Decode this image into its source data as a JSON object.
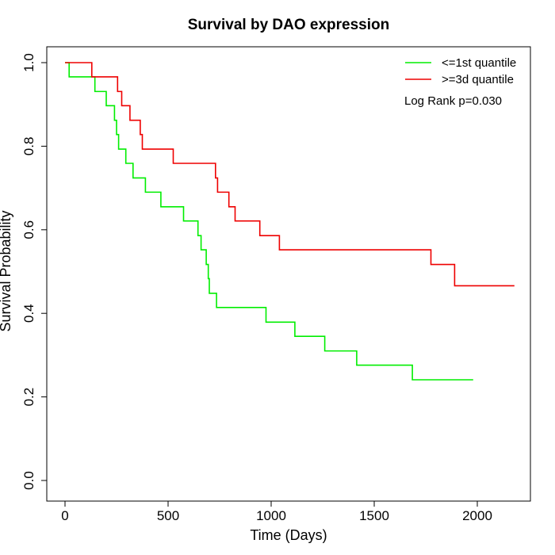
{
  "chart_data": {
    "type": "line",
    "step": true,
    "title": "Survival by DAO expression",
    "xlabel": "Time (Days)",
    "ylabel": "Survival Probability",
    "xlim": [
      0,
      2180
    ],
    "ylim": [
      0,
      1
    ],
    "x_ticks": [
      0,
      500,
      1000,
      1500,
      2000
    ],
    "x_tick_labels": [
      "0",
      "500",
      "1000",
      "1500",
      "2000"
    ],
    "y_ticks": [
      0,
      0.2,
      0.4,
      0.6,
      0.8,
      1
    ],
    "y_tick_labels": [
      "0.0",
      "0.2",
      "0.4",
      "0.6",
      "0.8",
      "1.0"
    ],
    "legend_position": "top-right",
    "annotation": "Log Rank p=0.030",
    "grid": false,
    "series": [
      {
        "name": "<=1st quantile",
        "color": "#00ee00",
        "points": [
          [
            0,
            1.0
          ],
          [
            20,
            0.966
          ],
          [
            145,
            0.931
          ],
          [
            200,
            0.897
          ],
          [
            240,
            0.862
          ],
          [
            250,
            0.828
          ],
          [
            260,
            0.793
          ],
          [
            295,
            0.759
          ],
          [
            330,
            0.724
          ],
          [
            390,
            0.69
          ],
          [
            465,
            0.655
          ],
          [
            575,
            0.621
          ],
          [
            645,
            0.586
          ],
          [
            660,
            0.552
          ],
          [
            685,
            0.517
          ],
          [
            695,
            0.483
          ],
          [
            700,
            0.448
          ],
          [
            735,
            0.414
          ],
          [
            975,
            0.379
          ],
          [
            1115,
            0.345
          ],
          [
            1260,
            0.31
          ],
          [
            1415,
            0.276
          ],
          [
            1685,
            0.241
          ],
          [
            1980,
            0.241
          ]
        ]
      },
      {
        "name": ">=3d quantile",
        "color": "#ee0000",
        "points": [
          [
            0,
            1.0
          ],
          [
            130,
            0.966
          ],
          [
            255,
            0.931
          ],
          [
            275,
            0.897
          ],
          [
            315,
            0.862
          ],
          [
            365,
            0.828
          ],
          [
            375,
            0.793
          ],
          [
            525,
            0.759
          ],
          [
            730,
            0.724
          ],
          [
            740,
            0.69
          ],
          [
            795,
            0.655
          ],
          [
            825,
            0.621
          ],
          [
            945,
            0.586
          ],
          [
            1040,
            0.552
          ],
          [
            1775,
            0.517
          ],
          [
            1890,
            0.466
          ],
          [
            2180,
            0.466
          ]
        ]
      }
    ]
  }
}
